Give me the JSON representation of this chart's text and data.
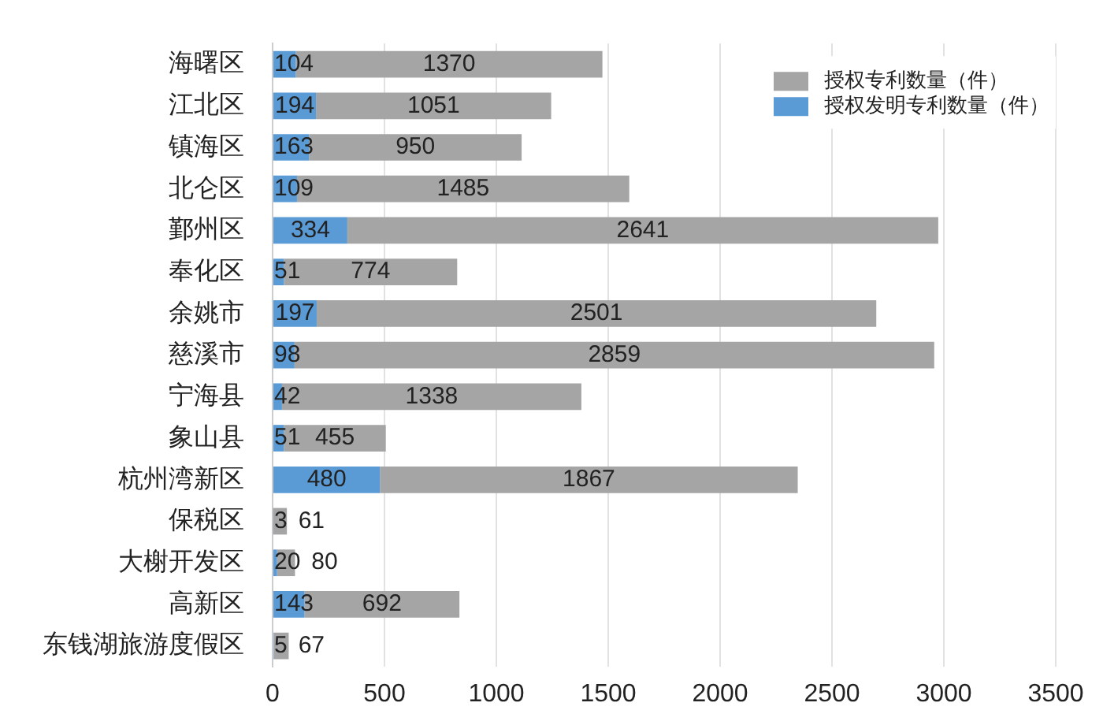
{
  "chart_data": {
    "type": "bar",
    "orientation": "horizontal",
    "stacked": true,
    "categories": [
      "海曙区",
      "江北区",
      "镇海区",
      "北仑区",
      "鄞州区",
      "奉化区",
      "余姚市",
      "慈溪市",
      "宁海县",
      "象山县",
      "杭州湾新区",
      "保税区",
      "大榭开发区",
      "高新区",
      "东钱湖旅游度假区"
    ],
    "series": [
      {
        "name": "授权发明专利数量（件）",
        "color": "#5b9bd5",
        "values": [
          104,
          194,
          163,
          109,
          334,
          51,
          197,
          98,
          42,
          51,
          480,
          3,
          20,
          143,
          5
        ]
      },
      {
        "name": "授权专利数量（件）",
        "color": "#a5a5a5",
        "values": [
          1370,
          1051,
          950,
          1485,
          2641,
          774,
          2501,
          2859,
          1338,
          455,
          1867,
          61,
          80,
          692,
          67
        ]
      }
    ],
    "xlim": [
      0,
      3500
    ],
    "xticks": [
      0,
      500,
      1000,
      1500,
      2000,
      2500,
      3000,
      3500
    ],
    "grid": "x",
    "legend": "top right",
    "data_labels": true
  }
}
